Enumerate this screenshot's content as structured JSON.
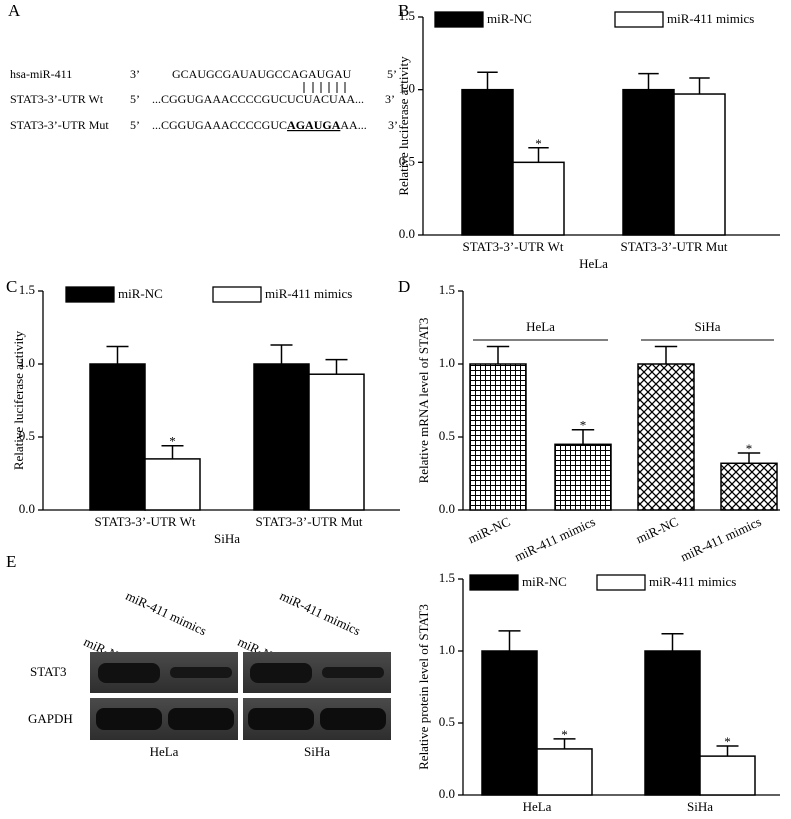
{
  "panel_labels": [
    "A",
    "B",
    "C",
    "D",
    "E"
  ],
  "alignment": {
    "rows": [
      {
        "name": "hsa-miR-411",
        "left": "3’",
        "sequence": [
          "GCAUGCGAUAUGCCAGAUGAU"
        ],
        "right": "5’"
      },
      {
        "name": "STAT3-3’-UTR Wt",
        "left": "5’",
        "sequence": [
          "...CGGUGAAACCCCGUCUCUACUAA..."
        ],
        "right": "3’"
      },
      {
        "name": "STAT3-3’-UTR Mut",
        "left": "5’",
        "sequence": [
          "...CGGUGAAACCCCGUC",
          "AGAUGA",
          "AA..."
        ],
        "right": "3’"
      }
    ]
  },
  "blot": {
    "lanes": [
      "miR-NC",
      "miR-411 mimics"
    ],
    "proteins": [
      "STAT3",
      "GAPDH"
    ],
    "cell_lines": [
      "HeLa",
      "SiHa"
    ]
  },
  "chart_data": [
    {
      "type": "bar",
      "categories": [
        "STAT3-3’-UTR Wt",
        "STAT3-3’-UTR Mut"
      ],
      "xlabel": "HeLa",
      "ylabel": "Relative luciferase activity",
      "ylim": [
        0,
        1.5
      ],
      "yticks": [
        {
          "value": 0,
          "label": "0.0"
        },
        0.5,
        {
          "value": 1,
          "label": "1.0"
        },
        1.5
      ],
      "series": [
        {
          "name": "miR-NC",
          "color": "#000000",
          "values": [
            1.0,
            1.0
          ],
          "errors": [
            0.12,
            0.11
          ],
          "significance": [
            null,
            null
          ]
        },
        {
          "name": "miR-411 mimics",
          "color": "#ffffff",
          "values": [
            0.5,
            0.97
          ],
          "errors": [
            0.1,
            0.11
          ],
          "significance": [
            "*",
            null
          ]
        }
      ]
    },
    {
      "type": "bar",
      "categories": [
        "STAT3-3’-UTR Wt",
        "STAT3-3’-UTR Mut"
      ],
      "xlabel": "SiHa",
      "ylabel": "Relative luciferase activity",
      "ylim": [
        0,
        1.5
      ],
      "yticks": [
        {
          "value": 0,
          "label": "0.0"
        },
        0.5,
        {
          "value": 1,
          "label": "1.0"
        },
        1.5
      ],
      "series": [
        {
          "name": "miR-NC",
          "color": "#000000",
          "values": [
            1.0,
            1.0
          ],
          "errors": [
            0.12,
            0.13
          ],
          "significance": [
            null,
            null
          ]
        },
        {
          "name": "miR-411 mimics",
          "color": "#ffffff",
          "values": [
            0.35,
            0.93
          ],
          "errors": [
            0.09,
            0.1
          ],
          "significance": [
            "*",
            null
          ]
        }
      ]
    },
    {
      "type": "bar",
      "ylabel": "Relative mRNA level of STAT3",
      "groups": [
        "HeLa",
        "SiHa"
      ],
      "categories": [
        "miR-NC",
        "miR-411 mimics",
        "miR-NC",
        "miR-411 mimics"
      ],
      "values": [
        1.0,
        0.45,
        1.0,
        0.32
      ],
      "errors": [
        0.12,
        0.1,
        0.12,
        0.07
      ],
      "significance": [
        null,
        "*",
        null,
        "*"
      ],
      "patterns": [
        "grid",
        "grid",
        "crosshatch",
        "crosshatch"
      ],
      "ylim": [
        0,
        1.5
      ],
      "yticks": [
        {
          "value": 0,
          "label": "0.0"
        },
        0.5,
        {
          "value": 1,
          "label": "1.0"
        },
        1.5
      ]
    },
    {
      "type": "bar",
      "categories": [
        "HeLa",
        "SiHa"
      ],
      "ylabel": "Relative protein level of STAT3",
      "ylim": [
        0,
        1.5
      ],
      "yticks": [
        {
          "value": 0,
          "label": "0.0"
        },
        0.5,
        {
          "value": 1,
          "label": "1.0"
        },
        1.5
      ],
      "series": [
        {
          "name": "miR-NC",
          "color": "#000000",
          "values": [
            1.0,
            1.0
          ],
          "errors": [
            0.14,
            0.12
          ],
          "significance": [
            null,
            null
          ]
        },
        {
          "name": "miR-411 mimics",
          "color": "#ffffff",
          "values": [
            0.32,
            0.27
          ],
          "errors": [
            0.07,
            0.07
          ],
          "significance": [
            "*",
            "*"
          ]
        }
      ]
    }
  ]
}
